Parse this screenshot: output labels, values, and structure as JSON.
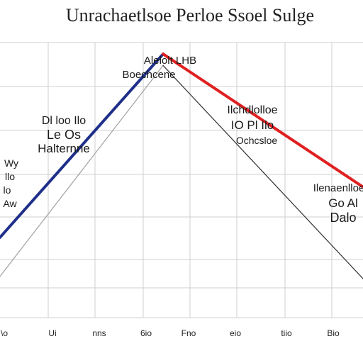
{
  "chart_data": {
    "type": "line",
    "title": "Unrachaetlsoe Perloe Ssoel Sulge",
    "xlabel": "",
    "ylabel": "",
    "grid": true,
    "x_ticks": [
      "\\o",
      "Ui",
      "nns",
      "6io",
      "Fno",
      "eio",
      "tiio",
      "Bio"
    ],
    "series": [
      {
        "color": "#1f2f8a",
        "points": [
          [
            0,
            20
          ],
          [
            230,
            100
          ]
        ]
      },
      {
        "color": "#e02020",
        "points": [
          [
            230,
            100
          ],
          [
            512,
            42
          ]
        ]
      },
      {
        "color": "#a0a0a0",
        "points": [
          [
            0,
            3
          ],
          [
            230,
            95
          ]
        ]
      },
      {
        "color": "#303030",
        "points": [
          [
            230,
            95
          ],
          [
            512,
            2
          ]
        ]
      }
    ],
    "xlim": [
      0,
      512
    ],
    "ylim": [
      -15,
      105
    ],
    "annotations": [
      {
        "line1": "Alelolt LHB",
        "line2": "Boechcene"
      },
      {
        "line1": "Dl loo Ilo",
        "line2": "Le Os",
        "line3": "Halternne"
      },
      {
        "line1": "Ilchdlolloe",
        "line2": "IO Pl Ilo",
        "line3": "Ochcsloe"
      },
      {
        "line1": "Wy",
        "line2": "llo",
        "line3": "lo",
        "line4": "Aw"
      },
      {
        "line1": "Ilenaenlloe",
        "line2": "Go Al",
        "line3": "Dalo"
      }
    ]
  }
}
